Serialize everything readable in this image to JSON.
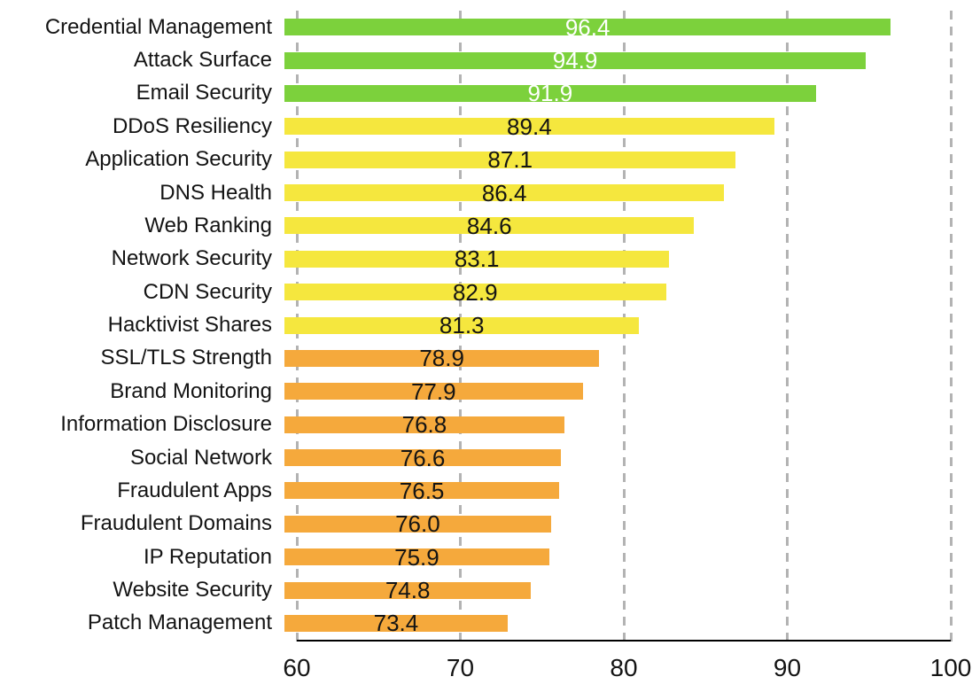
{
  "chart_data": {
    "type": "bar",
    "orientation": "horizontal",
    "title": "",
    "xlabel": "",
    "ylabel": "",
    "categories": [
      "Credential Management",
      "Attack Surface",
      "Email Security",
      "DDoS Resiliency",
      "Application Security",
      "DNS Health",
      "Web Ranking",
      "Network Security",
      "CDN Security",
      "Hacktivist Shares",
      "SSL/TLS Strength",
      "Brand Monitoring",
      "Information Disclosure",
      "Social Network",
      "Fraudulent Apps",
      "Fraudulent Domains",
      "IP Reputation",
      "Website Security",
      "Patch Management"
    ],
    "values": [
      96.4,
      94.9,
      91.9,
      89.4,
      87.1,
      86.4,
      84.6,
      83.1,
      82.9,
      81.3,
      78.9,
      77.9,
      76.8,
      76.6,
      76.5,
      76.0,
      75.9,
      74.8,
      73.4
    ],
    "value_labels": [
      "96.4",
      "94.9",
      "91.9",
      "89.4",
      "87.1",
      "86.4",
      "84.6",
      "83.1",
      "82.9",
      "81.3",
      "78.9",
      "77.9",
      "76.8",
      "76.6",
      "76.5",
      "76.0",
      "75.9",
      "74.8",
      "73.4"
    ],
    "color_groups": [
      "green",
      "green",
      "green",
      "yellow",
      "yellow",
      "yellow",
      "yellow",
      "yellow",
      "yellow",
      "yellow",
      "orange",
      "orange",
      "orange",
      "orange",
      "orange",
      "orange",
      "orange",
      "orange",
      "orange"
    ],
    "palette": {
      "green": "#7CD13C",
      "yellow": "#F5E73E",
      "orange": "#F5A93C"
    },
    "value_label_colors": {
      "green": "#ffffff",
      "yellow": "#141414",
      "orange": "#141414"
    },
    "xlim": [
      60,
      100
    ],
    "x_ticks": [
      60,
      70,
      80,
      90,
      100
    ],
    "x_tick_labels": [
      "60",
      "70",
      "80",
      "90",
      "100"
    ],
    "grid": "vertical-dashed",
    "gridline_color": "#b3b3b3",
    "axis_line_color": "#000000",
    "text_color": "#141414",
    "background": "#ffffff",
    "legend": "none"
  }
}
